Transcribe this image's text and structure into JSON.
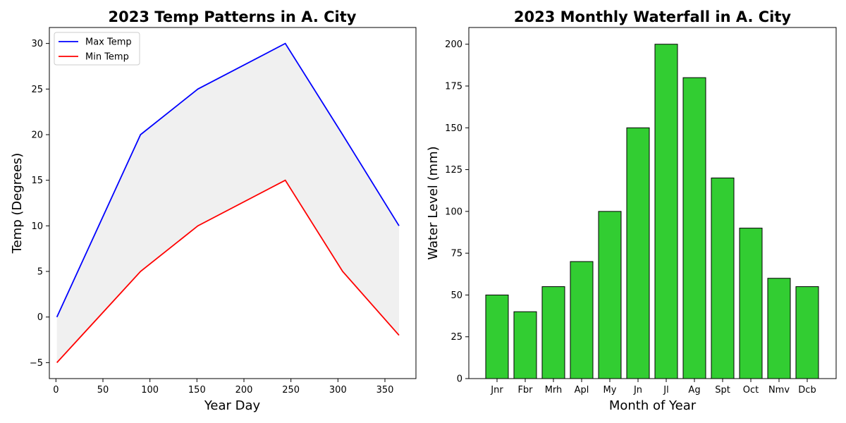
{
  "chart_data": [
    {
      "type": "line",
      "title": "2023 Temp Patterns in A. City",
      "xlabel": "Year Day",
      "ylabel": "Temp (Degrees)",
      "xlim": [
        -7,
        383
      ],
      "ylim": [
        -6.75,
        31.75
      ],
      "xticks": [
        0,
        50,
        100,
        150,
        200,
        250,
        300,
        350
      ],
      "yticks": [
        -5,
        0,
        5,
        10,
        15,
        20,
        25,
        30
      ],
      "legend_position": "top-left",
      "fill_between": {
        "series": [
          "Max Temp",
          "Min Temp"
        ],
        "color": "#f0f0f0"
      },
      "x": [
        1,
        90,
        151,
        244,
        305,
        365
      ],
      "series": [
        {
          "name": "Max Temp",
          "color": "#0000ff",
          "values": [
            0,
            20,
            25,
            30,
            20,
            10
          ]
        },
        {
          "name": "Min Temp",
          "color": "#ff0000",
          "values": [
            -5,
            5,
            10,
            15,
            5,
            -2
          ]
        }
      ]
    },
    {
      "type": "bar",
      "title": "2023 Monthly Waterfall in A. City",
      "xlabel": "Month of Year",
      "ylabel": "Water Level (mm)",
      "ylim": [
        0,
        210
      ],
      "yticks": [
        0,
        25,
        50,
        75,
        100,
        125,
        150,
        175,
        200
      ],
      "bar_color": "#32cd32",
      "edge_color": "#000000",
      "categories": [
        "Jnr",
        "Fbr",
        "Mrh",
        "Apl",
        "My",
        "Jn",
        "Jl",
        "Ag",
        "Spt",
        "Oct",
        "Nmv",
        "Dcb"
      ],
      "values": [
        50,
        40,
        55,
        70,
        100,
        150,
        200,
        180,
        120,
        90,
        60,
        55
      ]
    }
  ]
}
